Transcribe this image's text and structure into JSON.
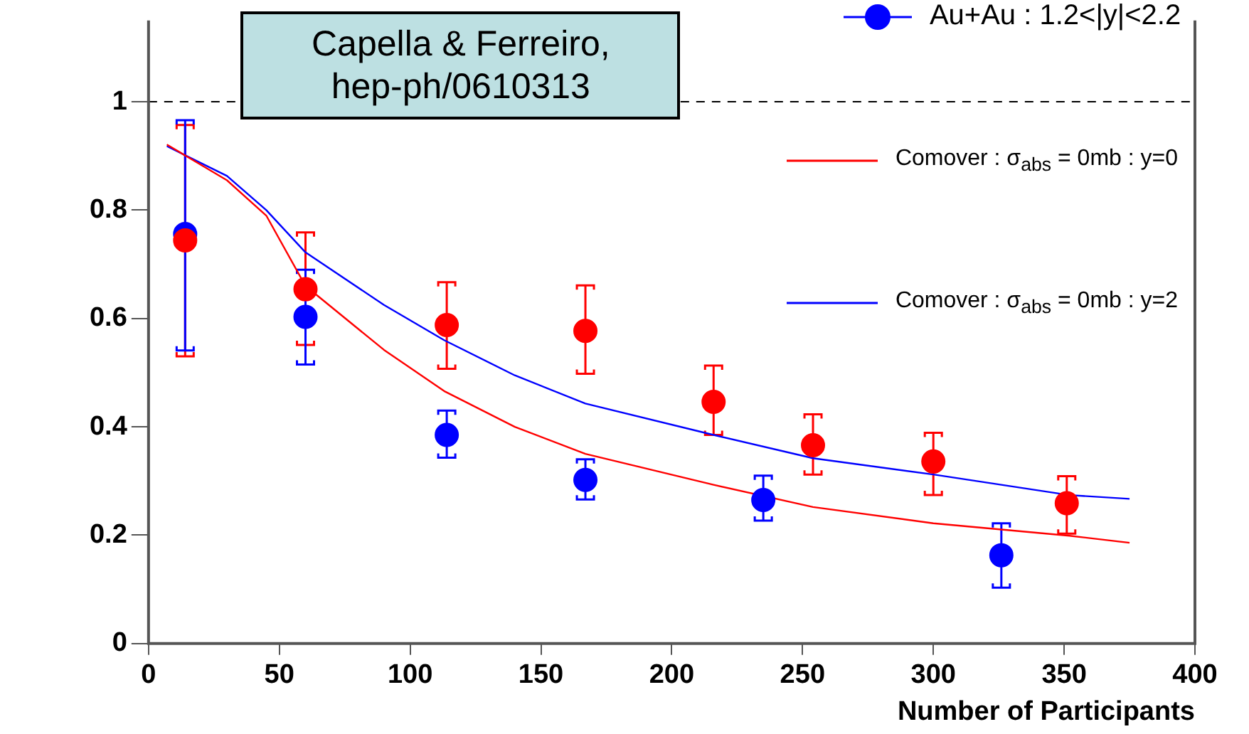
{
  "chart_data": {
    "type": "scatter",
    "xlabel": "Number of Participants",
    "xlim": [
      0,
      400
    ],
    "xticks": [
      0,
      50,
      100,
      150,
      200,
      250,
      300,
      350,
      400
    ],
    "ylim": [
      0,
      1.15
    ],
    "yticks": [
      0,
      0.2,
      0.4,
      0.6,
      0.8,
      1
    ],
    "grid": false,
    "legend": "top right",
    "marker": "circle",
    "ref_lines": [
      {
        "axis": "y",
        "value": 1,
        "color": "#000000",
        "line_style": "dashed"
      }
    ],
    "annotations": [
      "Capella & Ferreiro, hep-ph/0610313"
    ],
    "series": [
      {
        "color": "#ff0000",
        "x": [
          14,
          60,
          114,
          167,
          216,
          254,
          300,
          351
        ],
        "values": [
          0.744,
          0.654,
          0.588,
          0.577,
          0.446,
          0.366,
          0.336,
          0.259
        ],
        "errors": [
          [
            0.53,
            0.957
          ],
          [
            0.551,
            0.759
          ],
          [
            0.507,
            0.667
          ],
          [
            0.498,
            0.661
          ],
          [
            0.385,
            0.513
          ],
          [
            0.312,
            0.423
          ],
          [
            0.274,
            0.389
          ],
          [
            0.203,
            0.309
          ]
        ]
      },
      {
        "name": "Au+Au : 1.2<|y|<2.2",
        "color": "#0000ff",
        "x": [
          14,
          60,
          114,
          167,
          235,
          326
        ],
        "values": [
          0.756,
          0.603,
          0.385,
          0.302,
          0.265,
          0.163
        ],
        "errors": [
          [
            0.541,
            0.966
          ],
          [
            0.515,
            0.69
          ],
          [
            0.343,
            0.43
          ],
          [
            0.266,
            0.34
          ],
          [
            0.227,
            0.31
          ],
          [
            0.103,
            0.222
          ]
        ]
      },
      {
        "type": "line",
        "name": "Comover : σ$_{abs}$ = 0mb : y=0",
        "color": "#ff0000",
        "marker": "none",
        "x": [
          7,
          30,
          45,
          60,
          90,
          113,
          140,
          167,
          216,
          254,
          300,
          352,
          375
        ],
        "values": [
          0.921,
          0.855,
          0.79,
          0.66,
          0.542,
          0.466,
          0.4,
          0.35,
          0.293,
          0.252,
          0.222,
          0.199,
          0.186
        ]
      },
      {
        "type": "line",
        "name": "Comover : σ$_{abs}$ = 0mb : y=2",
        "color": "#0000ff",
        "marker": "none",
        "x": [
          7,
          30,
          45,
          60,
          90,
          113,
          140,
          167,
          216,
          254,
          300,
          352,
          375
        ],
        "values": [
          0.918,
          0.863,
          0.8,
          0.722,
          0.625,
          0.56,
          0.495,
          0.443,
          0.385,
          0.342,
          0.312,
          0.274,
          0.267
        ]
      }
    ]
  }
}
